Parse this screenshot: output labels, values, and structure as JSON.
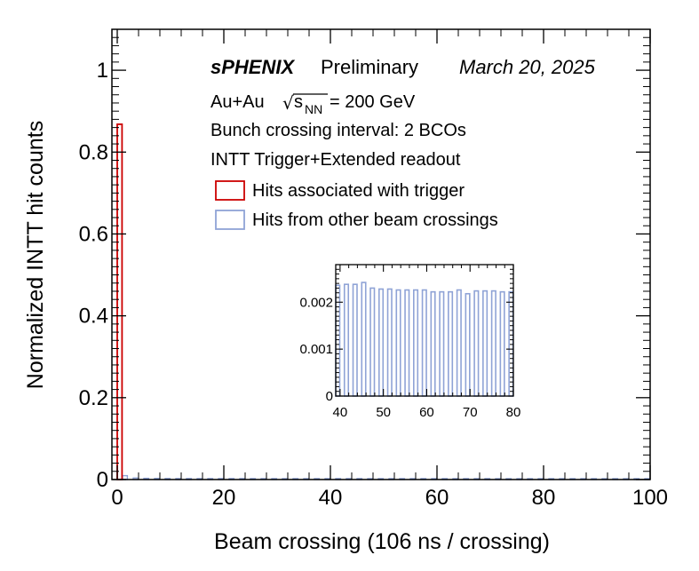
{
  "chart_data": [
    {
      "type": "bar",
      "xlabel": "Beam crossing (106 ns / crossing)",
      "ylabel": "Normalized INTT hit counts",
      "xlim": [
        -1,
        100
      ],
      "ylim": [
        0,
        1.1
      ],
      "x_ticks": [
        0,
        20,
        40,
        60,
        80,
        100
      ],
      "x_tick_labels": [
        "0",
        "20",
        "40",
        "60",
        "80",
        "100"
      ],
      "y_ticks": [
        0,
        0.2,
        0.4,
        0.6,
        0.8,
        1
      ],
      "y_tick_labels": [
        "0",
        "0.2",
        "0.4",
        "0.6",
        "0.8",
        "1"
      ],
      "grid": false,
      "series": [
        {
          "name": "Hits associated with trigger",
          "color": "#cc0000",
          "x": [
            0
          ],
          "values": [
            0.868
          ]
        },
        {
          "name": "Hits from other beam crossings",
          "color": "#8fa3d6",
          "x": [
            1,
            3,
            5,
            7,
            9,
            11,
            13,
            15,
            17,
            19,
            21,
            23,
            25,
            27,
            29,
            31,
            33,
            35,
            37,
            39,
            41,
            43,
            45,
            47,
            49,
            51,
            53,
            55,
            57,
            59,
            61,
            63,
            65,
            67,
            69,
            71,
            73,
            75,
            77,
            79,
            81,
            83,
            85,
            87,
            89,
            91,
            93,
            95,
            97,
            99
          ],
          "values": [
            0.0095,
            0.0038,
            0.003,
            0.0028,
            0.0026,
            0.0025,
            0.0025,
            0.0024,
            0.0024,
            0.0024,
            0.0024,
            0.0024,
            0.0023,
            0.0023,
            0.0023,
            0.0023,
            0.0023,
            0.0023,
            0.0023,
            0.0023,
            0.0024,
            0.0024,
            0.0024,
            0.0023,
            0.0023,
            0.0023,
            0.0023,
            0.0023,
            0.0023,
            0.0023,
            0.0023,
            0.0023,
            0.0023,
            0.0023,
            0.0023,
            0.0022,
            0.0022,
            0.0022,
            0.0022,
            0.0022,
            0.0022,
            0.0022,
            0.0022,
            0.0022,
            0.0022,
            0.0022,
            0.0022,
            0.0022,
            0.0022,
            0.0022
          ]
        }
      ],
      "annotations": {
        "experiment": "sPHENIX",
        "status": "Preliminary",
        "date": "March 20, 2025",
        "collision_system": "Au+Au",
        "sqrt_symbol": "√",
        "energy_var_main": "s",
        "energy_var_sub": "NN",
        "energy_value": "= 200 GeV",
        "bunch_interval": "Bunch crossing interval: 2 BCOs",
        "readout": "INTT Trigger+Extended readout"
      }
    },
    {
      "type": "bar",
      "xlim": [
        39,
        80
      ],
      "ylim": [
        0,
        0.0028
      ],
      "x_ticks": [
        40,
        50,
        60,
        70,
        80
      ],
      "x_tick_labels": [
        "40",
        "50",
        "60",
        "70",
        "80"
      ],
      "y_ticks": [
        0,
        0.001,
        0.002
      ],
      "y_tick_labels": [
        "0",
        "0.001",
        "0.002"
      ],
      "grid": false,
      "series": [
        {
          "name": "Hits from other beam crossings",
          "color": "#8fa3d6",
          "x": [
            39,
            41,
            43,
            45,
            47,
            49,
            51,
            53,
            55,
            57,
            59,
            61,
            63,
            65,
            67,
            69,
            71,
            73,
            75,
            77,
            79
          ],
          "values": [
            0.00236,
            0.00238,
            0.00238,
            0.00242,
            0.0023,
            0.00228,
            0.00228,
            0.00226,
            0.00226,
            0.00226,
            0.00226,
            0.00222,
            0.00222,
            0.00222,
            0.00226,
            0.00218,
            0.00224,
            0.00224,
            0.00224,
            0.00222,
            0.00222
          ]
        }
      ]
    }
  ]
}
